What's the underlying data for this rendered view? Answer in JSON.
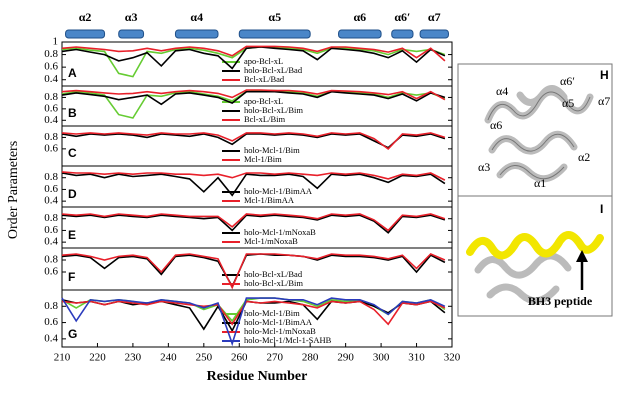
{
  "chart_data": [
    {
      "type": "line",
      "panel": "A",
      "ylabel": "Order Parameters",
      "xlim": [
        210,
        320
      ],
      "ylim": [
        0.3,
        1.0
      ],
      "yticks": [
        {
          "value": 1.0,
          "label": "1"
        },
        0.8,
        0.6,
        0.4
      ],
      "helices": [
        {
          "label": "α2",
          "start": 211,
          "end": 222
        },
        {
          "label": "α3",
          "start": 226,
          "end": 233
        },
        {
          "label": "α4",
          "start": 242,
          "end": 254
        },
        {
          "label": "α5",
          "start": 260,
          "end": 280
        },
        {
          "label": "α6",
          "start": 288,
          "end": 300
        },
        {
          "label": "α6′",
          "start": 303,
          "end": 309
        },
        {
          "label": "α7",
          "start": 311,
          "end": 319
        }
      ],
      "x": [
        210,
        214,
        218,
        222,
        226,
        230,
        234,
        238,
        242,
        246,
        250,
        254,
        258,
        262,
        266,
        270,
        274,
        278,
        282,
        286,
        290,
        294,
        298,
        302,
        306,
        310,
        314,
        318
      ],
      "series": [
        {
          "name": "apo-Bcl-xL",
          "color": "#66cc33",
          "values": [
            0.88,
            0.9,
            0.87,
            0.85,
            0.5,
            0.45,
            0.85,
            0.82,
            0.88,
            0.9,
            0.87,
            0.82,
            0.75,
            0.9,
            0.92,
            0.92,
            0.9,
            0.88,
            0.82,
            0.9,
            0.9,
            0.88,
            0.86,
            0.8,
            0.88,
            0.85,
            0.88,
            0.8
          ]
        },
        {
          "name": "holo-Bcl-xL/Bad",
          "color": "#000000",
          "values": [
            0.85,
            0.88,
            0.84,
            0.8,
            0.7,
            0.75,
            0.83,
            0.62,
            0.86,
            0.88,
            0.82,
            0.78,
            0.58,
            0.9,
            0.92,
            0.9,
            0.88,
            0.86,
            0.72,
            0.9,
            0.88,
            0.86,
            0.82,
            0.75,
            0.86,
            0.68,
            0.88,
            0.78
          ]
        },
        {
          "name": "Bcl-xL/Bad",
          "color": "#e8202a",
          "values": [
            0.9,
            0.92,
            0.9,
            0.88,
            0.85,
            0.86,
            0.9,
            0.86,
            0.9,
            0.92,
            0.9,
            0.86,
            0.78,
            0.93,
            0.93,
            0.93,
            0.92,
            0.9,
            0.85,
            0.92,
            0.92,
            0.9,
            0.88,
            0.84,
            0.9,
            0.75,
            0.9,
            0.7
          ]
        }
      ]
    },
    {
      "type": "line",
      "panel": "B",
      "xlim": [
        210,
        320
      ],
      "ylim": [
        0.3,
        1.0
      ],
      "yticks": [
        0.8,
        0.6,
        0.4
      ],
      "x": [
        210,
        214,
        218,
        222,
        226,
        230,
        234,
        238,
        242,
        246,
        250,
        254,
        258,
        262,
        266,
        270,
        274,
        278,
        282,
        286,
        290,
        294,
        298,
        302,
        306,
        310,
        314,
        318
      ],
      "series": [
        {
          "name": "apo-Bcl-xL",
          "color": "#66cc33",
          "values": [
            0.86,
            0.9,
            0.88,
            0.84,
            0.5,
            0.44,
            0.84,
            0.82,
            0.88,
            0.9,
            0.86,
            0.82,
            0.74,
            0.9,
            0.92,
            0.92,
            0.9,
            0.88,
            0.82,
            0.9,
            0.9,
            0.88,
            0.86,
            0.8,
            0.88,
            0.84,
            0.88,
            0.78
          ]
        },
        {
          "name": "holo-Bcl-xL/Bim",
          "color": "#000000",
          "values": [
            0.84,
            0.88,
            0.85,
            0.82,
            0.76,
            0.8,
            0.84,
            0.68,
            0.86,
            0.88,
            0.84,
            0.8,
            0.7,
            0.9,
            0.9,
            0.9,
            0.88,
            0.86,
            0.8,
            0.9,
            0.88,
            0.86,
            0.84,
            0.78,
            0.86,
            0.74,
            0.88,
            0.8
          ]
        },
        {
          "name": "Bcl-xL/Bim",
          "color": "#e8202a",
          "values": [
            0.9,
            0.92,
            0.9,
            0.88,
            0.86,
            0.87,
            0.9,
            0.87,
            0.9,
            0.92,
            0.9,
            0.87,
            0.8,
            0.93,
            0.93,
            0.92,
            0.92,
            0.9,
            0.86,
            0.92,
            0.91,
            0.9,
            0.88,
            0.85,
            0.9,
            0.78,
            0.9,
            0.76
          ]
        }
      ]
    },
    {
      "type": "line",
      "panel": "C",
      "xlim": [
        210,
        320
      ],
      "ylim": [
        0.3,
        1.0
      ],
      "yticks": [
        0.8,
        0.6
      ],
      "x": [
        210,
        214,
        218,
        222,
        226,
        230,
        234,
        238,
        242,
        246,
        250,
        254,
        258,
        262,
        266,
        270,
        274,
        278,
        282,
        286,
        290,
        294,
        298,
        302,
        306,
        310,
        314,
        318
      ],
      "series": [
        {
          "name": "holo-Mcl-1/Bim",
          "color": "#000000",
          "values": [
            0.86,
            0.82,
            0.86,
            0.84,
            0.86,
            0.84,
            0.8,
            0.86,
            0.84,
            0.82,
            0.86,
            0.8,
            0.68,
            0.86,
            0.86,
            0.84,
            0.86,
            0.84,
            0.8,
            0.86,
            0.84,
            0.86,
            0.74,
            0.62,
            0.84,
            0.82,
            0.86,
            0.78
          ]
        },
        {
          "name": "Mcl-1/Bim",
          "color": "#e8202a",
          "values": [
            0.88,
            0.86,
            0.88,
            0.86,
            0.88,
            0.86,
            0.84,
            0.88,
            0.86,
            0.86,
            0.88,
            0.84,
            0.74,
            0.88,
            0.88,
            0.86,
            0.88,
            0.86,
            0.82,
            0.88,
            0.86,
            0.88,
            0.78,
            0.6,
            0.86,
            0.84,
            0.88,
            0.8
          ]
        }
      ]
    },
    {
      "type": "line",
      "panel": "D",
      "xlim": [
        210,
        320
      ],
      "ylim": [
        0.3,
        1.0
      ],
      "yticks": [
        0.8,
        0.6,
        0.4
      ],
      "x": [
        210,
        214,
        218,
        222,
        226,
        230,
        234,
        238,
        242,
        246,
        250,
        254,
        258,
        262,
        266,
        270,
        274,
        278,
        282,
        286,
        290,
        294,
        298,
        302,
        306,
        310,
        314,
        318
      ],
      "series": [
        {
          "name": "holo-Mcl-1/BimAA",
          "color": "#000000",
          "values": [
            0.88,
            0.84,
            0.86,
            0.8,
            0.86,
            0.82,
            0.84,
            0.86,
            0.82,
            0.78,
            0.56,
            0.8,
            0.5,
            0.86,
            0.84,
            0.84,
            0.86,
            0.82,
            0.62,
            0.86,
            0.84,
            0.86,
            0.8,
            0.72,
            0.84,
            0.82,
            0.86,
            0.7
          ]
        },
        {
          "name": "Mcl-1/BimAA",
          "color": "#e8202a",
          "values": [
            0.9,
            0.88,
            0.88,
            0.86,
            0.88,
            0.86,
            0.88,
            0.88,
            0.86,
            0.86,
            0.84,
            0.86,
            0.8,
            0.88,
            0.88,
            0.86,
            0.88,
            0.86,
            0.84,
            0.88,
            0.86,
            0.88,
            0.84,
            0.78,
            0.86,
            0.84,
            0.88,
            0.76
          ]
        }
      ]
    },
    {
      "type": "line",
      "panel": "E",
      "xlim": [
        210,
        320
      ],
      "ylim": [
        0.3,
        1.0
      ],
      "yticks": [
        0.8,
        0.6,
        0.4
      ],
      "x": [
        210,
        214,
        218,
        222,
        226,
        230,
        234,
        238,
        242,
        246,
        250,
        254,
        258,
        262,
        266,
        270,
        274,
        278,
        282,
        286,
        290,
        294,
        298,
        302,
        306,
        310,
        314,
        318
      ],
      "series": [
        {
          "name": "holo-Mcl-1/mNoxaB",
          "color": "#000000",
          "values": [
            0.86,
            0.84,
            0.86,
            0.82,
            0.86,
            0.84,
            0.82,
            0.86,
            0.84,
            0.82,
            0.8,
            0.82,
            0.6,
            0.86,
            0.84,
            0.86,
            0.84,
            0.82,
            0.78,
            0.86,
            0.84,
            0.86,
            0.76,
            0.56,
            0.84,
            0.82,
            0.86,
            0.78
          ]
        },
        {
          "name": "Mcl-1/mNoxaB",
          "color": "#e8202a",
          "values": [
            0.88,
            0.86,
            0.88,
            0.84,
            0.88,
            0.86,
            0.84,
            0.88,
            0.86,
            0.84,
            0.84,
            0.84,
            0.66,
            0.88,
            0.86,
            0.88,
            0.86,
            0.84,
            0.8,
            0.88,
            0.86,
            0.88,
            0.78,
            0.6,
            0.86,
            0.84,
            0.88,
            0.8
          ]
        }
      ]
    },
    {
      "type": "line",
      "panel": "F",
      "xlim": [
        210,
        320
      ],
      "ylim": [
        0.3,
        1.0
      ],
      "yticks": [
        0.8,
        0.6
      ],
      "x": [
        210,
        214,
        218,
        222,
        226,
        230,
        234,
        238,
        242,
        246,
        250,
        254,
        258,
        262,
        266,
        270,
        274,
        278,
        282,
        286,
        290,
        294,
        298,
        302,
        306,
        310,
        314,
        318
      ],
      "series": [
        {
          "name": "holo-Bcl-xL/Bad",
          "color": "#000000",
          "values": [
            0.86,
            0.88,
            0.84,
            0.66,
            0.84,
            0.86,
            0.82,
            0.56,
            0.86,
            0.88,
            0.84,
            0.78,
            0.36,
            0.88,
            0.9,
            0.88,
            0.88,
            0.86,
            0.8,
            0.88,
            0.86,
            0.86,
            0.84,
            0.8,
            0.86,
            0.6,
            0.88,
            0.76
          ]
        },
        {
          "name": "holo-Bcl-xL/Bim",
          "color": "#e8202a",
          "values": [
            0.88,
            0.9,
            0.86,
            0.8,
            0.86,
            0.88,
            0.84,
            0.6,
            0.88,
            0.9,
            0.86,
            0.82,
            0.34,
            0.9,
            0.9,
            0.9,
            0.88,
            0.86,
            0.82,
            0.9,
            0.88,
            0.88,
            0.86,
            0.82,
            0.88,
            0.66,
            0.9,
            0.8
          ]
        }
      ]
    },
    {
      "type": "line",
      "panel": "G",
      "xlabel": "Residue Number",
      "xlim": [
        210,
        320
      ],
      "ylim": [
        0.3,
        1.0
      ],
      "yticks": [
        0.8,
        0.6,
        0.4
      ],
      "xticks": [
        210,
        220,
        230,
        240,
        250,
        260,
        270,
        280,
        290,
        300,
        310,
        320
      ],
      "x": [
        210,
        214,
        218,
        222,
        226,
        230,
        234,
        238,
        242,
        246,
        250,
        254,
        258,
        262,
        266,
        270,
        274,
        278,
        282,
        286,
        290,
        294,
        298,
        302,
        306,
        310,
        314,
        318
      ],
      "series": [
        {
          "name": "holo-Mcl-1/Bim",
          "color": "#66cc33",
          "values": [
            0.88,
            0.78,
            0.88,
            0.86,
            0.88,
            0.86,
            0.82,
            0.88,
            0.86,
            0.84,
            0.76,
            0.82,
            0.62,
            0.88,
            0.9,
            0.9,
            0.88,
            0.86,
            0.8,
            0.88,
            0.86,
            0.88,
            0.8,
            0.7,
            0.86,
            0.84,
            0.88,
            0.76
          ]
        },
        {
          "name": "holo-Mcl-1/BimAA",
          "color": "#000000",
          "values": [
            0.88,
            0.84,
            0.86,
            0.82,
            0.86,
            0.82,
            0.84,
            0.86,
            0.82,
            0.78,
            0.52,
            0.8,
            0.5,
            0.86,
            0.84,
            0.84,
            0.86,
            0.82,
            0.64,
            0.86,
            0.84,
            0.86,
            0.8,
            0.72,
            0.84,
            0.82,
            0.86,
            0.72
          ]
        },
        {
          "name": "holo-Mcl-1/mNoxaB",
          "color": "#e8202a",
          "values": [
            0.86,
            0.84,
            0.86,
            0.82,
            0.86,
            0.84,
            0.82,
            0.86,
            0.84,
            0.82,
            0.8,
            0.82,
            0.58,
            0.86,
            0.84,
            0.86,
            0.84,
            0.82,
            0.78,
            0.86,
            0.84,
            0.86,
            0.76,
            0.58,
            0.84,
            0.82,
            0.86,
            0.78
          ]
        },
        {
          "name": "holo-Mcl-1/Mcl-1-SAHB",
          "color": "#2b3bbd",
          "values": [
            0.9,
            0.62,
            0.88,
            0.86,
            0.88,
            0.86,
            0.84,
            0.88,
            0.86,
            0.84,
            0.78,
            0.84,
            0.34,
            0.9,
            0.9,
            0.9,
            0.88,
            0.88,
            0.82,
            0.9,
            0.88,
            0.88,
            0.82,
            0.7,
            0.86,
            0.84,
            0.88,
            0.8
          ]
        }
      ]
    }
  ],
  "structures": {
    "H": {
      "panel": "H",
      "labels": [
        "α4",
        "α6′",
        "α5",
        "α7",
        "α6",
        "α3",
        "α2",
        "α1"
      ]
    },
    "I": {
      "panel": "I",
      "annotation": "BH3 peptide"
    }
  }
}
